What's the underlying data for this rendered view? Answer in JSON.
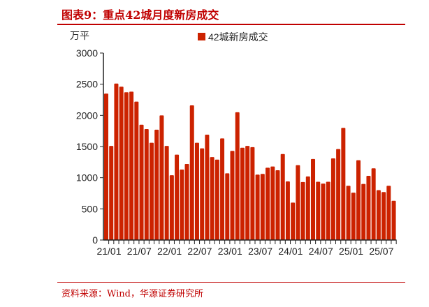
{
  "title": "图表9：重点42城月度新房成交",
  "source": "资料来源：Wind，华源证券研究所",
  "chart_data": {
    "type": "bar",
    "title": "",
    "ylabel": "万平",
    "ylim": [
      0,
      3000
    ],
    "yticks": [
      0,
      500,
      1000,
      1500,
      2000,
      2500,
      3000
    ],
    "xtick_labels": [
      "21/01",
      "21/07",
      "22/01",
      "22/07",
      "23/01",
      "23/07",
      "24/01",
      "24/07",
      "25/01",
      "25/07"
    ],
    "legend": "top-center",
    "color": "#cc2200",
    "categories": [
      "21/01",
      "21/02",
      "21/03",
      "21/04",
      "21/05",
      "21/06",
      "21/07",
      "21/08",
      "21/09",
      "21/10",
      "21/11",
      "21/12",
      "22/01",
      "22/02",
      "22/03",
      "22/04",
      "22/05",
      "22/06",
      "22/07",
      "22/08",
      "22/09",
      "22/10",
      "22/11",
      "22/12",
      "23/01",
      "23/02",
      "23/03",
      "23/04",
      "23/05",
      "23/06",
      "23/07",
      "23/08",
      "23/09",
      "23/10",
      "23/11",
      "23/12",
      "24/01",
      "24/02",
      "24/03",
      "24/04",
      "24/05",
      "24/06",
      "24/07",
      "24/08",
      "24/09",
      "24/10",
      "24/11",
      "24/12",
      "25/01",
      "25/02",
      "25/03",
      "25/04",
      "25/05",
      "25/06",
      "25/07",
      "25/08",
      "25/09",
      "25/10"
    ],
    "series": [
      {
        "name": "42城新房成交",
        "values": [
          2350,
          1510,
          2510,
          2460,
          2370,
          2380,
          2220,
          1850,
          1780,
          1560,
          1770,
          2000,
          1510,
          1040,
          1370,
          1130,
          1220,
          2160,
          1560,
          1470,
          1690,
          1330,
          1290,
          1630,
          1070,
          1430,
          2050,
          1480,
          1510,
          1490,
          1050,
          1060,
          1160,
          1180,
          1120,
          1380,
          940,
          600,
          1200,
          930,
          1020,
          1300,
          935,
          905,
          935,
          1310,
          1460,
          1800,
          870,
          760,
          1280,
          900,
          1030,
          1150,
          800,
          770,
          870,
          630
        ]
      }
    ]
  }
}
